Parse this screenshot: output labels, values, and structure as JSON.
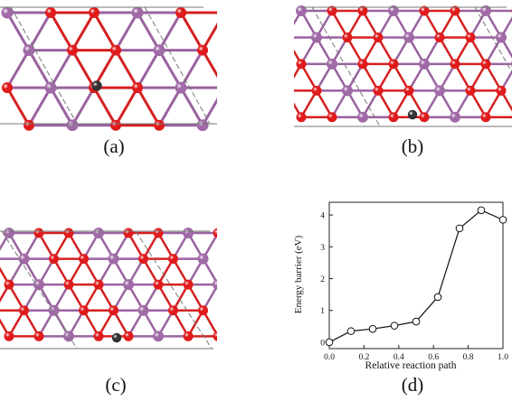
{
  "figure": {
    "captions": {
      "a": "(a)",
      "b": "(b)",
      "c": "(c)",
      "d": "(d)"
    }
  },
  "colors": {
    "atom_red": "#e01b1b",
    "atom_purple": "#a06aa6",
    "atom_black": "#111111",
    "bond_red": "#d42020",
    "bond_purple": "#9a62a0",
    "cell_line": "#777777"
  },
  "chart_data": {
    "type": "line",
    "xlabel": "Relative reaction path",
    "ylabel": "Energy barrier (eV)",
    "xlim": [
      0.0,
      1.0
    ],
    "ylim": [
      -0.2,
      4.4
    ],
    "xticks": [
      "0.0",
      "0.2",
      "0.4",
      "0.6",
      "0.8",
      "1.0"
    ],
    "yticks": [
      "0",
      "1",
      "2",
      "3",
      "4"
    ],
    "marker": "open-circle",
    "x": [
      0.0,
      0.125,
      0.25,
      0.375,
      0.5,
      0.625,
      0.75,
      0.875,
      1.0
    ],
    "y": [
      0.0,
      0.35,
      0.42,
      0.52,
      0.65,
      1.42,
      3.58,
      4.15,
      3.85
    ]
  }
}
